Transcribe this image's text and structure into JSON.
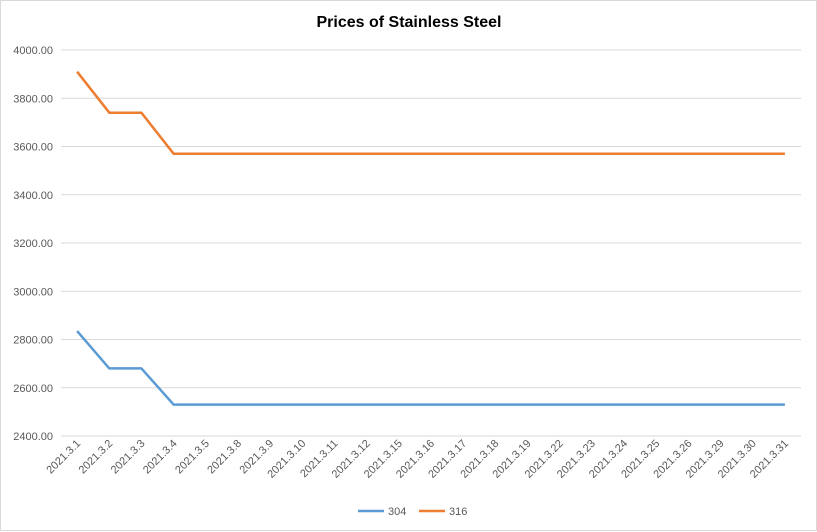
{
  "chart_data": {
    "type": "line",
    "title": "Prices of Stainless Steel",
    "xlabel": "",
    "ylabel": "",
    "categories": [
      "2021.3.1",
      "2021.3.2",
      "2021.3.3",
      "2021.3.4",
      "2021.3.5",
      "2021.3.8",
      "2021.3.9",
      "2021.3.10",
      "2021.3.11",
      "2021.3.12",
      "2021.3.15",
      "2021.3.16",
      "2021.3.17",
      "2021.3.18",
      "2021.3.19",
      "2021.3.22",
      "2021.3.23",
      "2021.3.24",
      "2021.3.25",
      "2021.3.26",
      "2021.3.29",
      "2021.3.30",
      "2021.3.31"
    ],
    "ylim": [
      2400,
      4000
    ],
    "yticks": [
      "2400.00",
      "2600.00",
      "2800.00",
      "3000.00",
      "3200.00",
      "3400.00",
      "3600.00",
      "3800.00",
      "4000.00"
    ],
    "grid": true,
    "legend_position": "bottom",
    "series": [
      {
        "name": "304",
        "color": "#5b9bd5",
        "values": [
          2835,
          2680,
          2680,
          2530,
          2530,
          2530,
          2530,
          2530,
          2530,
          2530,
          2530,
          2530,
          2530,
          2530,
          2530,
          2530,
          2530,
          2530,
          2530,
          2530,
          2530,
          2530,
          2530
        ]
      },
      {
        "name": "316",
        "color": "#ed7d31",
        "values": [
          3910,
          3740,
          3740,
          3570,
          3570,
          3570,
          3570,
          3570,
          3570,
          3570,
          3570,
          3570,
          3570,
          3570,
          3570,
          3570,
          3570,
          3570,
          3570,
          3570,
          3570,
          3570,
          3570
        ]
      }
    ]
  }
}
